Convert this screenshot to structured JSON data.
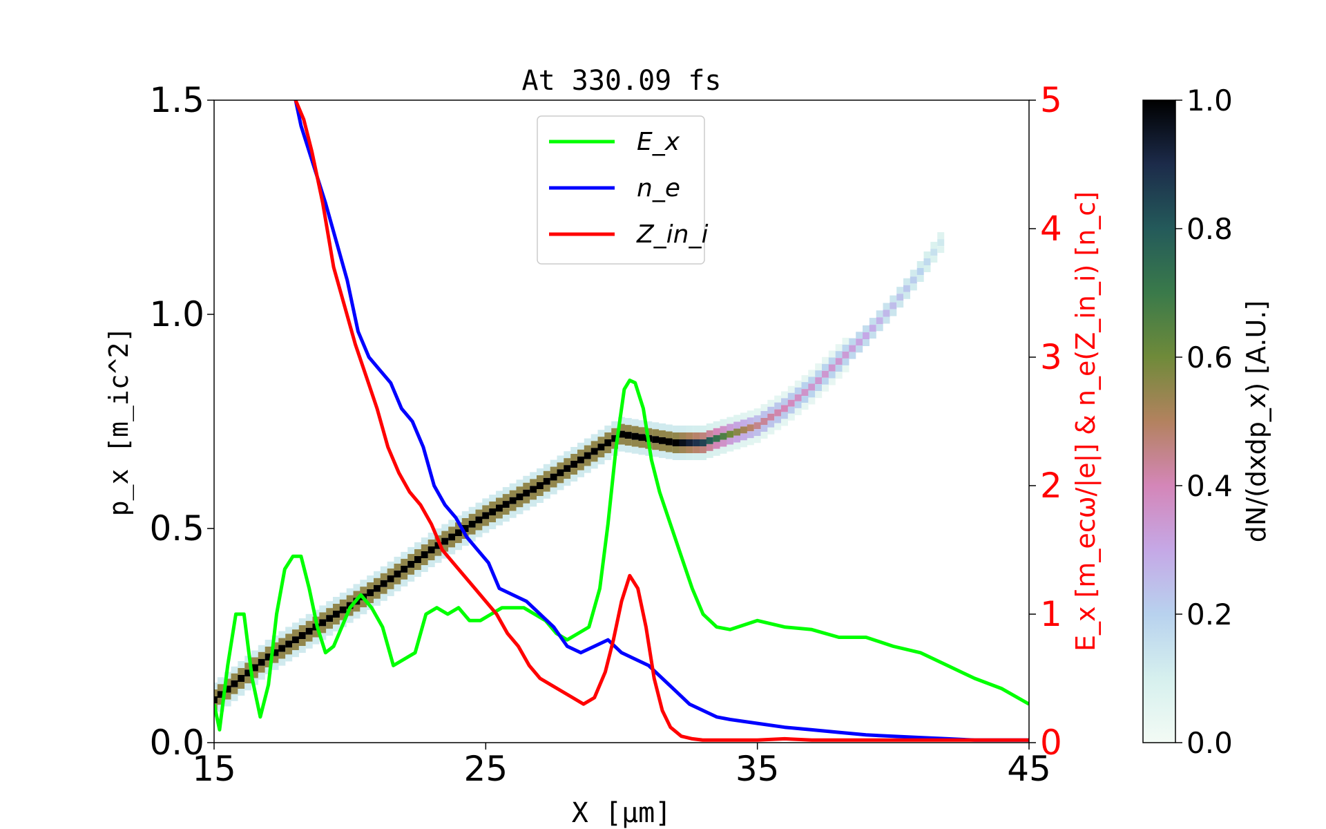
{
  "chart_data": {
    "type": "line",
    "title": "At 330.09 fs",
    "xlabel": "X [μm]",
    "ylabel_left": "p_x [m_ic^2]",
    "ylabel_right": "E_x [m_ecω/|e|] & n_e(Z_in_i) [n_c]",
    "colorbar_label": "dN/(dxdp_x) [A.U.]",
    "xlim": [
      15,
      45
    ],
    "ylim_left": [
      0,
      1.5
    ],
    "ylim_right": [
      0,
      5
    ],
    "colorbar_lim": [
      0,
      1
    ],
    "x_ticks": [
      "15",
      "25",
      "35",
      "45"
    ],
    "y_left_ticks": [
      "0.0",
      "0.5",
      "1.0",
      "1.5"
    ],
    "y_right_ticks": [
      "0",
      "1",
      "2",
      "3",
      "4",
      "5"
    ],
    "colorbar_ticks": [
      "0.0",
      "0.2",
      "0.4",
      "0.6",
      "0.8",
      "1.0"
    ],
    "legend": {
      "position": "top-center",
      "entries": [
        "E_x",
        "n_e",
        "Z_in_i"
      ]
    },
    "colors": {
      "E_x": "#00ff00",
      "n_e": "#0000ff",
      "Z_in_i": "#ff0000",
      "right_axis": "#ff0000"
    },
    "series": [
      {
        "name": "E_x",
        "axis": "right",
        "x": [
          15.0,
          15.2,
          15.5,
          15.8,
          16.1,
          16.4,
          16.7,
          17.0,
          17.3,
          17.6,
          17.9,
          18.2,
          18.5,
          18.8,
          19.1,
          19.4,
          19.7,
          20.0,
          20.4,
          20.8,
          21.2,
          21.6,
          22.0,
          22.4,
          22.8,
          23.2,
          23.6,
          24.0,
          24.4,
          24.8,
          25.2,
          25.6,
          26.0,
          26.4,
          26.8,
          27.2,
          27.6,
          28.0,
          28.4,
          28.8,
          29.2,
          29.5,
          29.8,
          30.1,
          30.3,
          30.5,
          30.8,
          31.1,
          31.4,
          31.8,
          32.2,
          32.6,
          33.0,
          33.5,
          34.0,
          35.0,
          36.0,
          37.0,
          38.0,
          39.0,
          40.0,
          41.0,
          42.0,
          43.0,
          44.0,
          45.0
        ],
        "values": [
          0.3,
          0.1,
          0.6,
          1.0,
          1.0,
          0.5,
          0.2,
          0.45,
          1.0,
          1.35,
          1.45,
          1.45,
          1.2,
          0.9,
          0.7,
          0.75,
          0.9,
          1.05,
          1.15,
          1.05,
          0.9,
          0.6,
          0.65,
          0.7,
          1.0,
          1.05,
          1.0,
          1.05,
          0.95,
          0.95,
          1.0,
          1.05,
          1.05,
          1.05,
          1.0,
          0.95,
          0.85,
          0.8,
          0.85,
          0.9,
          1.2,
          1.7,
          2.3,
          2.75,
          2.82,
          2.8,
          2.6,
          2.2,
          1.95,
          1.7,
          1.45,
          1.2,
          1.0,
          0.9,
          0.88,
          0.95,
          0.9,
          0.88,
          0.82,
          0.82,
          0.75,
          0.7,
          0.6,
          0.5,
          0.42,
          0.3
        ]
      },
      {
        "name": "n_e",
        "axis": "right",
        "x": [
          18.0,
          18.2,
          18.5,
          18.8,
          19.1,
          19.5,
          19.9,
          20.3,
          20.7,
          21.1,
          21.5,
          21.9,
          22.3,
          22.7,
          23.1,
          23.5,
          23.9,
          24.3,
          24.7,
          25.1,
          25.5,
          26.0,
          26.5,
          27.0,
          27.5,
          28.0,
          28.5,
          29.0,
          29.5,
          30.0,
          30.5,
          31.0,
          31.5,
          32.0,
          32.5,
          33.0,
          33.5,
          34.0,
          35.0,
          36.0,
          37.0,
          38.0,
          39.0,
          40.0,
          41.0,
          42.0,
          43.0,
          44.0,
          45.0
        ],
        "values": [
          5.0,
          4.8,
          4.6,
          4.4,
          4.2,
          3.9,
          3.6,
          3.2,
          3.0,
          2.9,
          2.8,
          2.6,
          2.5,
          2.3,
          2.0,
          1.85,
          1.75,
          1.6,
          1.5,
          1.4,
          1.2,
          1.15,
          1.1,
          1.0,
          0.9,
          0.75,
          0.7,
          0.75,
          0.8,
          0.7,
          0.65,
          0.6,
          0.5,
          0.4,
          0.3,
          0.25,
          0.2,
          0.18,
          0.15,
          0.12,
          0.1,
          0.08,
          0.06,
          0.05,
          0.04,
          0.03,
          0.02,
          0.02,
          0.02
        ]
      },
      {
        "name": "Z_in_i",
        "axis": "right",
        "x": [
          18.0,
          18.3,
          18.6,
          19.0,
          19.4,
          19.8,
          20.2,
          20.6,
          21.0,
          21.4,
          21.8,
          22.2,
          22.6,
          23.0,
          23.4,
          23.8,
          24.2,
          24.6,
          25.0,
          25.4,
          25.8,
          26.2,
          26.6,
          27.0,
          27.4,
          27.8,
          28.2,
          28.6,
          29.0,
          29.4,
          29.7,
          30.0,
          30.3,
          30.6,
          30.9,
          31.2,
          31.5,
          31.8,
          32.2,
          32.6,
          33.0,
          34.0,
          35.0,
          36.0,
          37.0,
          38.0,
          39.0,
          40.0,
          41.0,
          42.0,
          43.0,
          44.0,
          45.0
        ],
        "values": [
          5.0,
          4.85,
          4.6,
          4.2,
          3.7,
          3.4,
          3.1,
          2.85,
          2.6,
          2.3,
          2.1,
          1.95,
          1.85,
          1.7,
          1.5,
          1.4,
          1.3,
          1.2,
          1.1,
          1.0,
          0.85,
          0.75,
          0.6,
          0.5,
          0.45,
          0.4,
          0.35,
          0.3,
          0.35,
          0.55,
          0.8,
          1.1,
          1.3,
          1.2,
          0.9,
          0.5,
          0.25,
          0.12,
          0.05,
          0.03,
          0.02,
          0.02,
          0.02,
          0.03,
          0.02,
          0.02,
          0.02,
          0.02,
          0.02,
          0.02,
          0.02,
          0.02,
          0.02
        ]
      }
    ],
    "heatmap_band": {
      "x": [
        15.0,
        17.0,
        19.0,
        21.0,
        23.0,
        25.0,
        27.0,
        29.0,
        30.0,
        31.0,
        32.0,
        33.0,
        34.0,
        35.0,
        36.0,
        37.0,
        38.0,
        39.0,
        40.0,
        41.0,
        42.0
      ],
      "px": [
        0.1,
        0.2,
        0.28,
        0.36,
        0.45,
        0.53,
        0.6,
        0.68,
        0.72,
        0.71,
        0.7,
        0.7,
        0.72,
        0.74,
        0.78,
        0.83,
        0.89,
        0.95,
        1.02,
        1.1,
        1.19
      ],
      "intensity": [
        1.0,
        1.0,
        1.0,
        1.0,
        1.0,
        1.0,
        1.0,
        1.0,
        1.0,
        1.0,
        1.0,
        0.85,
        0.6,
        0.45,
        0.4,
        0.35,
        0.35,
        0.3,
        0.25,
        0.2,
        0.1
      ]
    }
  }
}
